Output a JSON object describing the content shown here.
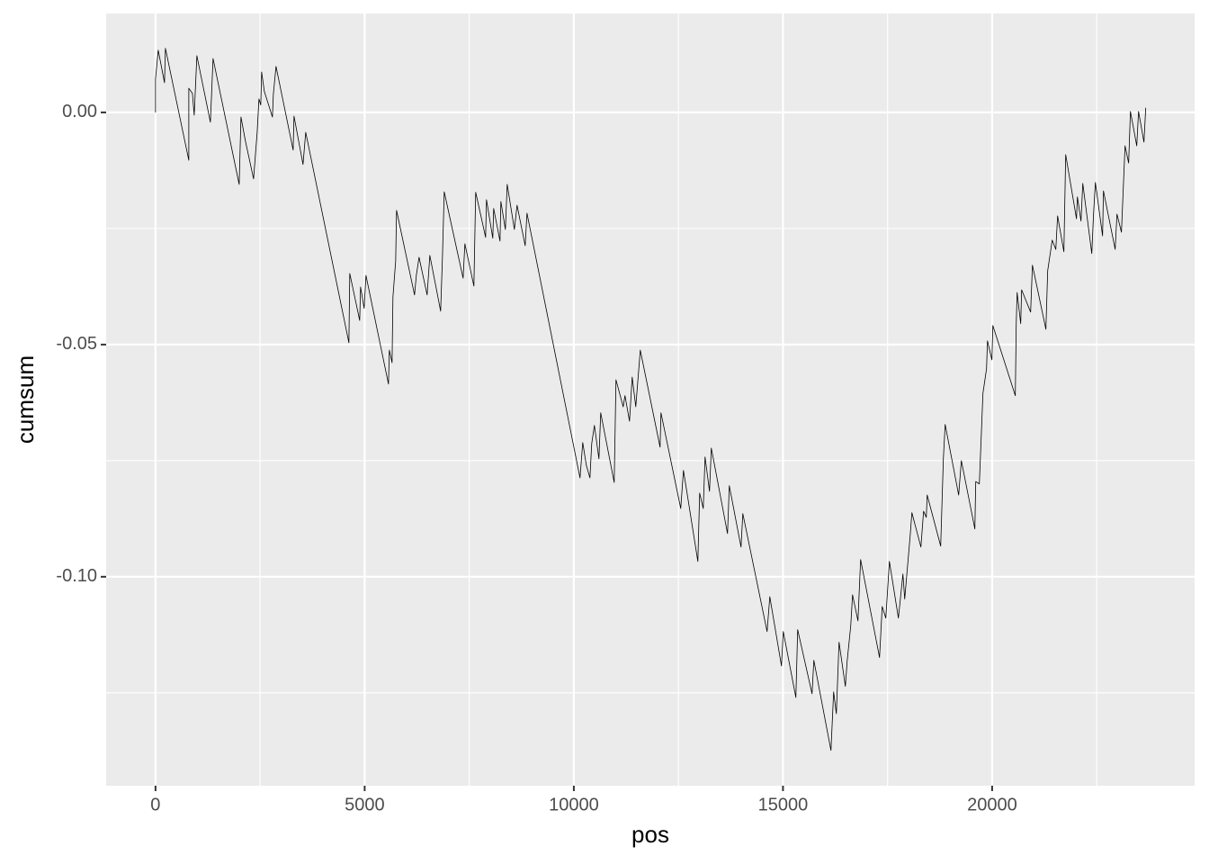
{
  "chart_data": {
    "type": "line",
    "x_label": "pos",
    "y_label": "cumsum",
    "color": "#000000",
    "grid": true,
    "xlim": [
      -1180,
      24840
    ],
    "ylim": [
      -0.145,
      0.0213
    ],
    "xticks": [
      0,
      5000,
      10000,
      15000,
      20000
    ],
    "yticks": [
      {
        "value": 0,
        "label": "0.00"
      },
      {
        "value": -0.05,
        "label": "-0.05"
      },
      {
        "value": -0.1,
        "label": "-0.10"
      }
    ],
    "xminor": [
      2500,
      7500,
      12500,
      17500,
      22500
    ],
    "yminor": [
      -0.125,
      -0.075,
      -0.025
    ],
    "x": [
      0,
      0,
      65,
      215,
      237,
      796,
      796,
      882,
      925,
      989,
      1312,
      1376,
      2000,
      2043,
      2150,
      2344,
      2430,
      2473,
      2516,
      2537,
      2602,
      2795,
      2817,
      2881,
      3290,
      3311,
      3526,
      3591,
      4623,
      4644,
      4881,
      4902,
      4988,
      5031,
      5569,
      5590,
      5655,
      5676,
      5741,
      5762,
      6192,
      6235,
      6300,
      6493,
      6558,
      6816,
      6859,
      6902,
      7353,
      7396,
      7611,
      7654,
      7891,
      7912,
      8063,
      8084,
      8235,
      8256,
      8364,
      8407,
      8579,
      8643,
      8837,
      8880,
      10148,
      10213,
      10299,
      10385,
      10428,
      10492,
      10600,
      10643,
      10965,
      11008,
      11180,
      11223,
      11331,
      11395,
      11481,
      11589,
      12062,
      12083,
      12556,
      12621,
      12965,
      13008,
      13094,
      13137,
      13244,
      13287,
      13674,
      13717,
      13997,
      14040,
      14620,
      14685,
      14964,
      15007,
      15308,
      15351,
      15695,
      15738,
      16147,
      16211,
      16276,
      16340,
      16491,
      16534,
      16620,
      16663,
      16792,
      16856,
      17308,
      17372,
      17458,
      17544,
      17759,
      17867,
      17910,
      18039,
      18082,
      18297,
      18361,
      18426,
      18447,
      18770,
      18834,
      18877,
      19200,
      19264,
      19587,
      19608,
      19694,
      19780,
      19866,
      19888,
      19995,
      20017,
      20554,
      20576,
      20597,
      20683,
      20705,
      20920,
      20963,
      21285,
      21328,
      21436,
      21522,
      21565,
      21715,
      21758,
      22016,
      22038,
      22124,
      22167,
      22382,
      22425,
      22468,
      22640,
      22661,
      22941,
      22984,
      23091,
      23177,
      23263,
      23306,
      23457,
      23500,
      23629,
      23672
    ],
    "values": [
      0,
      0.0072,
      0.0134,
      0.0064,
      0.0138,
      -0.0103,
      0.0052,
      0.0041,
      -0.0006,
      0.0122,
      -0.0021,
      0.0116,
      -0.0155,
      -0.001,
      -0.0062,
      -0.0143,
      -0.0043,
      0.0029,
      0.0016,
      0.0087,
      0.0045,
      -0.001,
      0.0039,
      0.0099,
      -0.0081,
      -0.0008,
      -0.0112,
      -0.0043,
      -0.0496,
      -0.0347,
      -0.0448,
      -0.0376,
      -0.0422,
      -0.0351,
      -0.0585,
      -0.0512,
      -0.0539,
      -0.0397,
      -0.032,
      -0.0211,
      -0.0393,
      -0.0351,
      -0.0312,
      -0.0393,
      -0.0308,
      -0.0428,
      -0.0312,
      -0.0171,
      -0.0357,
      -0.0283,
      -0.0374,
      -0.0172,
      -0.0269,
      -0.0188,
      -0.0271,
      -0.0207,
      -0.0277,
      -0.0192,
      -0.0252,
      -0.0155,
      -0.0252,
      -0.02,
      -0.0287,
      -0.0217,
      -0.0787,
      -0.0711,
      -0.076,
      -0.0787,
      -0.0713,
      -0.0674,
      -0.0746,
      -0.0647,
      -0.0797,
      -0.0576,
      -0.0634,
      -0.061,
      -0.0665,
      -0.057,
      -0.0634,
      -0.0512,
      -0.0721,
      -0.0647,
      -0.0853,
      -0.0771,
      -0.0967,
      -0.082,
      -0.0853,
      -0.0742,
      -0.0816,
      -0.0723,
      -0.0907,
      -0.0804,
      -0.0936,
      -0.0864,
      -0.1118,
      -0.1043,
      -0.1192,
      -0.1118,
      -0.126,
      -0.1114,
      -0.1252,
      -0.118,
      -0.1374,
      -0.1248,
      -0.1295,
      -0.1141,
      -0.1236,
      -0.1182,
      -0.1105,
      -0.1039,
      -0.1095,
      -0.0963,
      -0.1174,
      -0.1064,
      -0.1089,
      -0.0967,
      -0.1089,
      -0.0994,
      -0.1048,
      -0.0913,
      -0.0862,
      -0.0936,
      -0.0859,
      -0.0872,
      -0.0824,
      -0.0934,
      -0.0746,
      -0.0672,
      -0.0824,
      -0.075,
      -0.0897,
      -0.0795,
      -0.08,
      -0.0605,
      -0.0552,
      -0.0492,
      -0.0533,
      -0.0459,
      -0.061,
      -0.0455,
      -0.0388,
      -0.0455,
      -0.0382,
      -0.043,
      -0.0329,
      -0.0467,
      -0.0341,
      -0.0275,
      -0.0295,
      -0.0223,
      -0.03,
      -0.0091,
      -0.0229,
      -0.0182,
      -0.0234,
      -0.0153,
      -0.0304,
      -0.0217,
      -0.0151,
      -0.0266,
      -0.0169,
      -0.0295,
      -0.0219,
      -0.0258,
      -0.0072,
      -0.0109,
      0.0002,
      -0.0072,
      0.0002,
      -0.0064,
      0.001
    ]
  }
}
